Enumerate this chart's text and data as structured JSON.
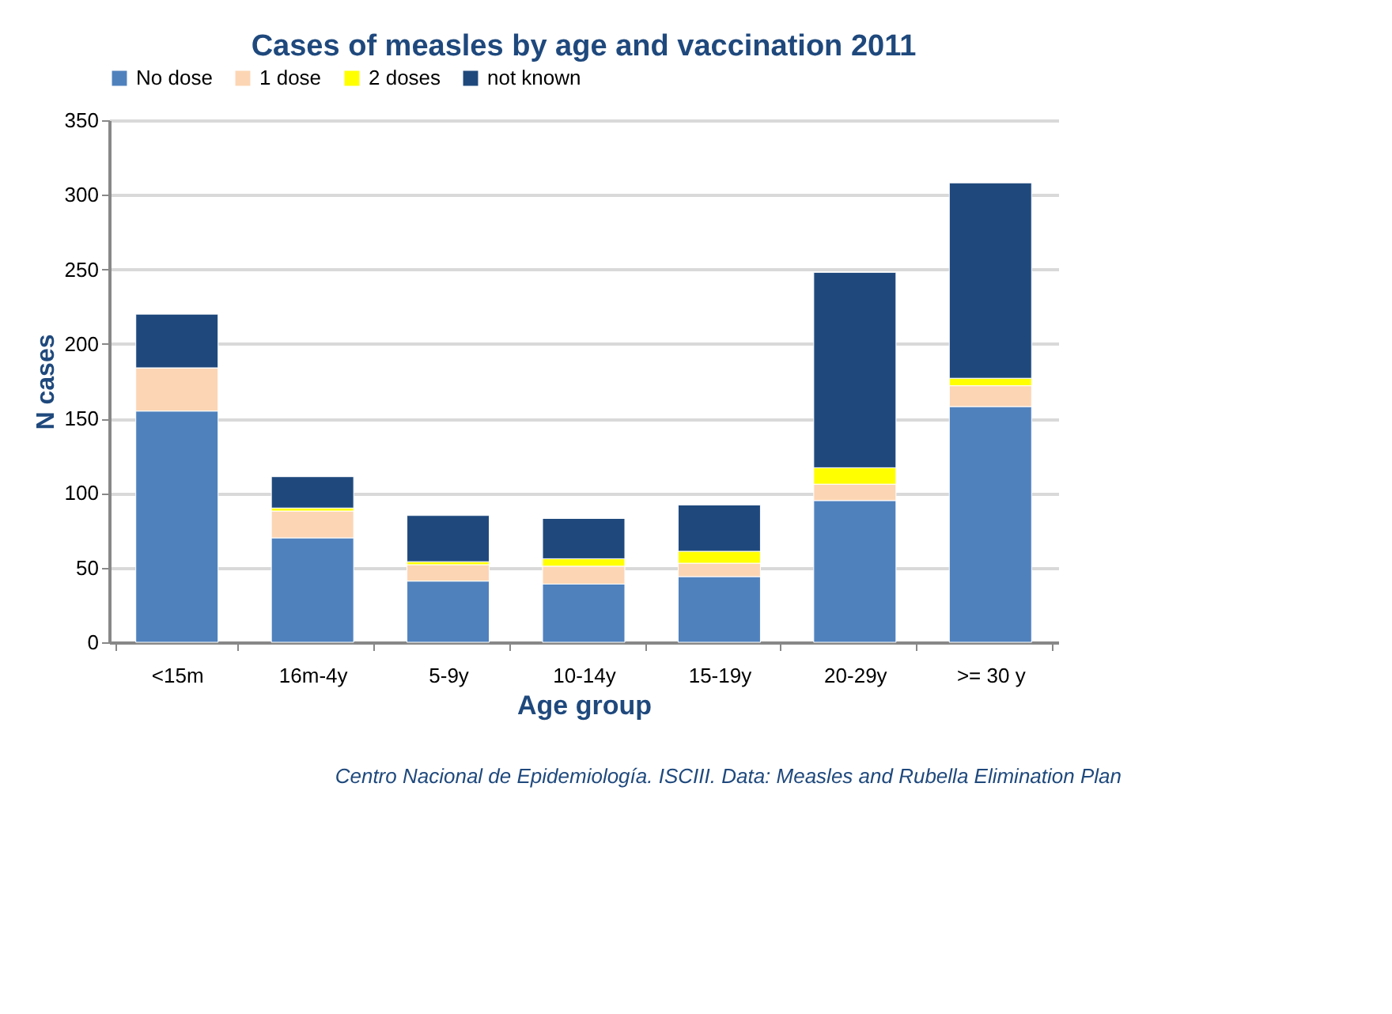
{
  "chart_data": {
    "type": "bar",
    "stacked": true,
    "title": "Cases of measles by age and vaccination 2011",
    "xlabel": "Age group",
    "ylabel": "N cases",
    "categories": [
      "<15m",
      "16m-4y",
      "5-9y",
      "10-14y",
      "15-19y",
      "20-29y",
      ">= 30 y"
    ],
    "series": [
      {
        "name": "No dose",
        "color": "#4f81bd",
        "values": [
          155,
          70,
          41,
          39,
          44,
          95,
          158
        ]
      },
      {
        "name": "1 dose",
        "color": "#fcd5b4",
        "values": [
          29,
          18,
          11,
          12,
          9,
          11,
          14
        ]
      },
      {
        "name": "2 doses",
        "color": "#ffff00",
        "values": [
          0,
          2,
          2,
          5,
          8,
          11,
          5
        ]
      },
      {
        "name": "not known",
        "color": "#1f497d",
        "values": [
          36,
          21,
          31,
          27,
          31,
          131,
          131
        ]
      }
    ],
    "ylim": [
      0,
      350
    ],
    "yticks": [
      0,
      50,
      100,
      150,
      200,
      250,
      300,
      350
    ],
    "grid": "y",
    "legend": "top",
    "annotations": [
      "Centro Nacional de Epidemiología. ISCIII. Data: Measles and Rubella Elimination  Plan"
    ]
  }
}
